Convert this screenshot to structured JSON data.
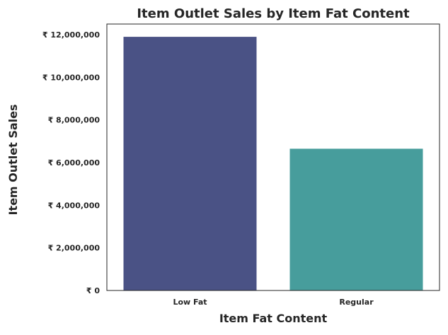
{
  "chart_data": {
    "type": "bar",
    "title": "Item Outlet Sales by Item Fat Content",
    "xlabel": "Item Fat Content",
    "ylabel": "Item Outlet Sales",
    "categories": [
      "Low Fat",
      "Regular"
    ],
    "values": [
      11900000,
      6650000
    ],
    "bar_colors": [
      "#4a5285",
      "#479d9c"
    ],
    "ylim": [
      0,
      12500000
    ],
    "yticks": [
      0,
      2000000,
      4000000,
      6000000,
      8000000,
      10000000,
      12000000
    ],
    "ytick_labels": [
      "₹ 0",
      "₹ 2,000,000",
      "₹ 4,000,000",
      "₹ 6,000,000",
      "₹ 8,000,000",
      "₹ 10,000,000",
      "₹ 12,000,000"
    ],
    "grid": false,
    "legend": "none"
  }
}
